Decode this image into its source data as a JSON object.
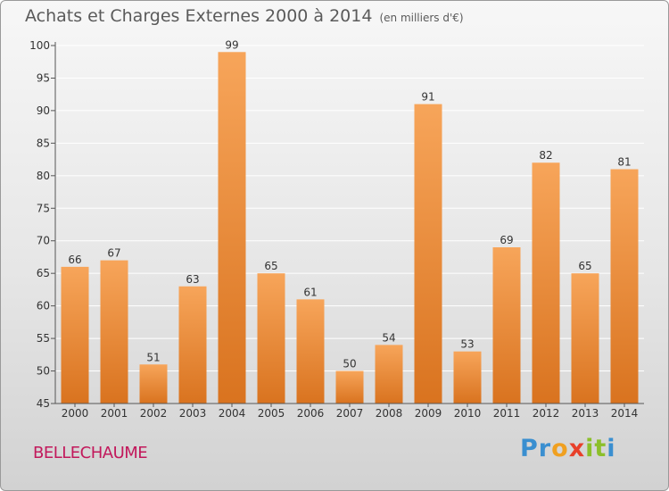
{
  "header": {
    "title": "Achats et Charges Externes 2000 à 2014",
    "subtitle": "(en milliers d'€)"
  },
  "footer": {
    "place": "BELLECHAUME",
    "brand": "Proxiti",
    "brand_letters": [
      {
        "char": "P",
        "color": "#3a8fd0"
      },
      {
        "char": "r",
        "color": "#3a8fd0"
      },
      {
        "char": "o",
        "color": "#f0a020"
      },
      {
        "char": "x",
        "color": "#e8402a"
      },
      {
        "char": "i",
        "color": "#8cbf2a"
      },
      {
        "char": "t",
        "color": "#8cbf2a"
      },
      {
        "char": "i",
        "color": "#3a8fd0"
      }
    ]
  },
  "chart_data": {
    "type": "bar",
    "title": "Achats et Charges Externes 2000 à 2014",
    "subtitle": "(en milliers d'€)",
    "categories": [
      "2000",
      "2001",
      "2002",
      "2003",
      "2004",
      "2005",
      "2006",
      "2007",
      "2008",
      "2009",
      "2010",
      "2011",
      "2012",
      "2013",
      "2014"
    ],
    "values": [
      66,
      67,
      51,
      63,
      99,
      65,
      61,
      50,
      54,
      91,
      53,
      69,
      82,
      65,
      81
    ],
    "ylim": [
      45,
      100
    ],
    "yticks": [
      45,
      50,
      55,
      60,
      65,
      70,
      75,
      80,
      85,
      90,
      95,
      100
    ],
    "grid": true,
    "data_labels": true,
    "colors": {
      "bar_top": "#f7a55a",
      "bar_bottom": "#d9731f",
      "grid": "#ffffff",
      "axis": "#555555",
      "text": "#333333"
    }
  }
}
